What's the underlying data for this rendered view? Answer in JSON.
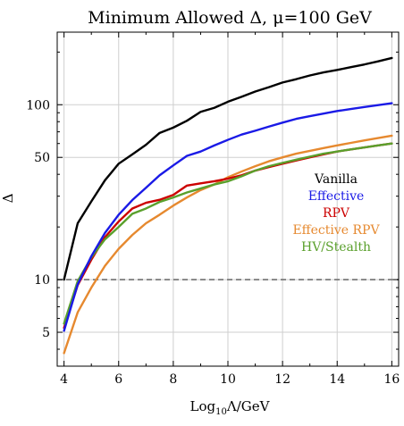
{
  "chart_data": {
    "type": "line",
    "title": "Minimum Allowed Δ, μ=100 GeV",
    "xlabel_base": "Log",
    "xlabel_sub": "10",
    "xlabel_rest": "Λ/GeV",
    "ylabel": "Δ",
    "xlim": [
      3.75,
      16.25
    ],
    "ylim": [
      3.2,
      260
    ],
    "yscale": "log",
    "grid": true,
    "legend_position": "right-middle",
    "x_ticks": [
      {
        "value": 4,
        "label": "4"
      },
      {
        "value": 6,
        "label": "6"
      },
      {
        "value": 8,
        "label": "8"
      },
      {
        "value": 10,
        "label": "10"
      },
      {
        "value": 12,
        "label": "12"
      },
      {
        "value": 14,
        "label": "14"
      },
      {
        "value": 16,
        "label": "16"
      }
    ],
    "y_ticks": [
      {
        "value": 5,
        "label": "5"
      },
      {
        "value": 10,
        "label": "10"
      },
      {
        "value": 50,
        "label": "50"
      },
      {
        "value": 100,
        "label": "100"
      }
    ],
    "reference_line": {
      "y": 10,
      "color": "#7a7a7a",
      "style": "dashed"
    },
    "series": [
      {
        "name": "Vanilla",
        "color": "#000000",
        "x": [
          4,
          4.5,
          5,
          5.5,
          6,
          6.5,
          7,
          7.5,
          8,
          8.5,
          9,
          9.5,
          10,
          10.5,
          11,
          11.5,
          12,
          12.5,
          13,
          13.5,
          14,
          14.5,
          15,
          15.5,
          16
        ],
        "y": [
          10,
          21,
          28,
          37,
          46,
          52,
          59,
          69,
          74,
          81,
          91,
          96,
          104,
          111,
          119,
          126,
          134,
          140,
          147,
          153,
          158,
          164,
          170,
          177,
          185
        ]
      },
      {
        "name": "Effective",
        "color": "#1a1ae6",
        "x": [
          4,
          4.5,
          5,
          5.5,
          6,
          6.5,
          7,
          7.5,
          8,
          8.5,
          9,
          9.5,
          10,
          10.5,
          11,
          11.5,
          12,
          12.5,
          13,
          13.5,
          14,
          14.5,
          15,
          15.5,
          16
        ],
        "y": [
          5.1,
          9.4,
          13.6,
          18.5,
          23.5,
          28.5,
          33.5,
          39.5,
          45,
          51,
          54,
          58.5,
          63,
          67.5,
          71,
          75,
          79,
          83,
          86,
          89,
          92,
          94.5,
          97,
          99.5,
          102
        ]
      },
      {
        "name": "RPV",
        "color": "#cc0000",
        "x": [
          4,
          4.5,
          5,
          5.5,
          6,
          6.5,
          7,
          7.5,
          8,
          8.5,
          9,
          9.5,
          10,
          10.5,
          11,
          11.5,
          12,
          12.5,
          13,
          13.5,
          14,
          14.5,
          15,
          15.5,
          16
        ],
        "y": [
          5.3,
          9.3,
          13.0,
          17.5,
          21.5,
          25.5,
          27.5,
          28.6,
          30.5,
          34.5,
          35.5,
          36.5,
          37.8,
          39.5,
          42,
          44,
          46,
          48,
          50,
          52,
          54,
          55.5,
          57,
          58.5,
          60
        ]
      },
      {
        "name": "Effective RPV",
        "color": "#e6892f",
        "x": [
          4,
          4.5,
          5,
          5.5,
          6,
          6.5,
          7,
          7.5,
          8,
          8.5,
          9,
          9.5,
          10,
          10.5,
          11,
          11.5,
          12,
          12.5,
          13,
          13.5,
          14,
          14.5,
          15,
          15.5,
          16
        ],
        "y": [
          3.8,
          6.5,
          9.0,
          12.0,
          15.0,
          18.0,
          21.0,
          23.5,
          26.5,
          29.5,
          32.5,
          35.0,
          38.5,
          41.5,
          44.5,
          47.5,
          50.0,
          52.5,
          54.5,
          56.5,
          58.5,
          60.5,
          62.5,
          64.5,
          66.5
        ]
      },
      {
        "name": "HV/Stealth",
        "color": "#5aa02c",
        "x": [
          4,
          4.5,
          5,
          5.5,
          6,
          6.5,
          7,
          7.5,
          8,
          8.5,
          9,
          9.5,
          10,
          10.5,
          11,
          11.5,
          12,
          12.5,
          13,
          13.5,
          14,
          14.5,
          15,
          15.5,
          16
        ],
        "y": [
          5.6,
          9.8,
          13.4,
          17.0,
          20.0,
          23.8,
          25.5,
          27.8,
          29.5,
          31.5,
          33.2,
          35.0,
          36.5,
          39.0,
          42.0,
          44.5,
          46.5,
          48.5,
          50.5,
          52.5,
          54.0,
          55.5,
          57.0,
          58.5,
          60.0
        ]
      }
    ]
  }
}
